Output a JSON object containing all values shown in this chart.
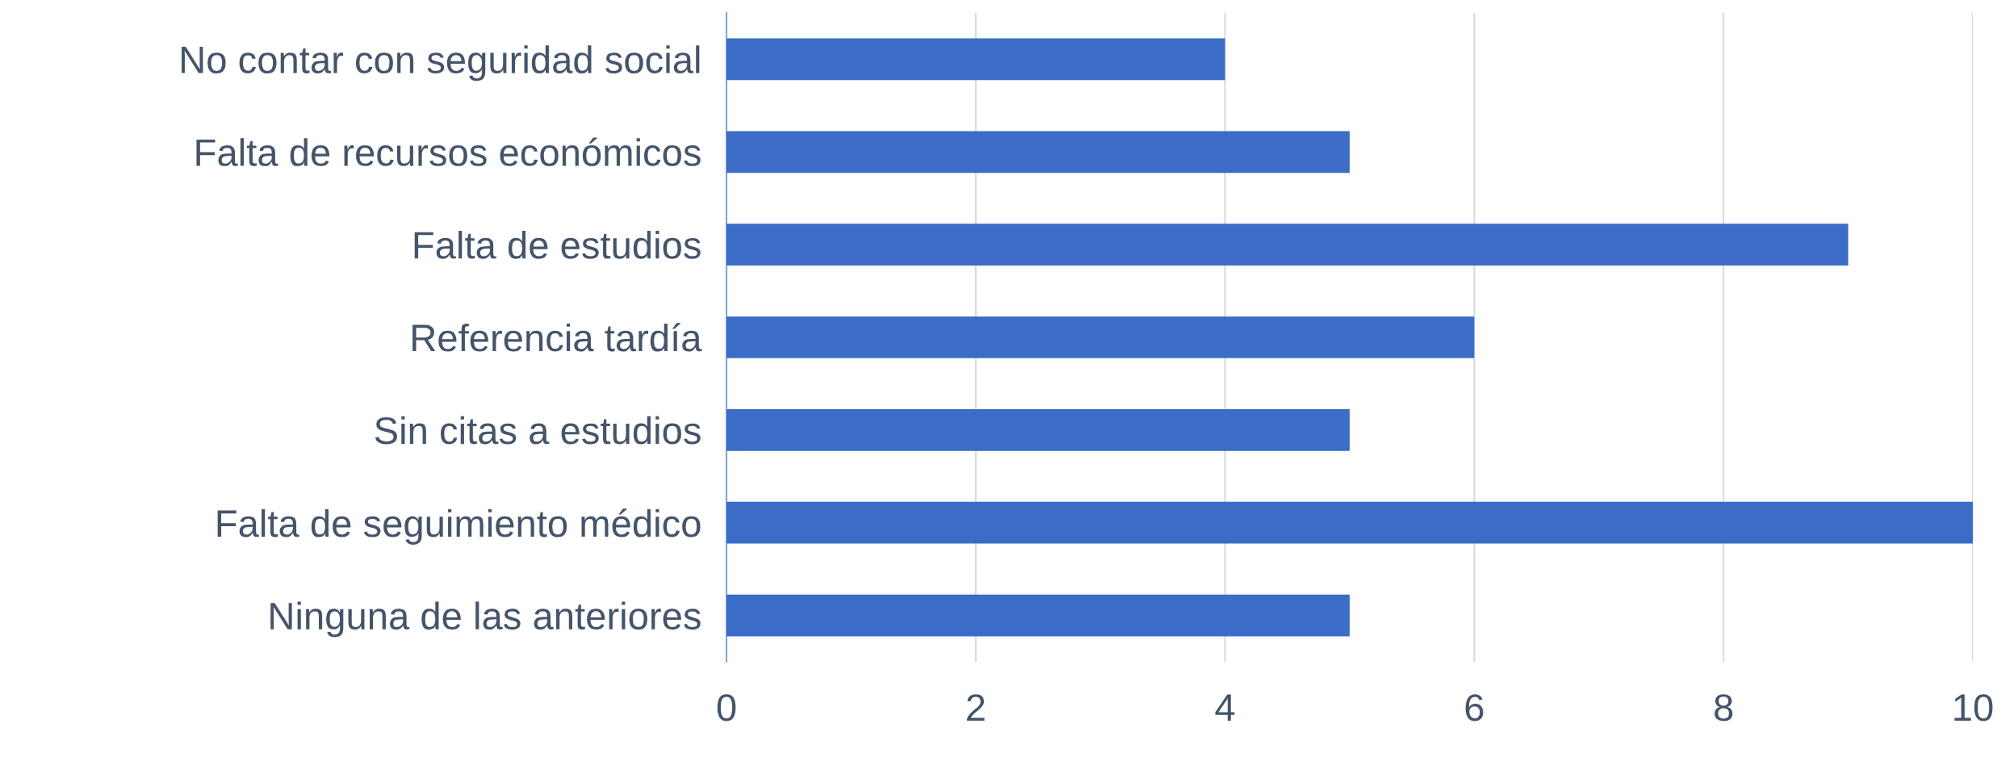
{
  "chart_data": {
    "type": "bar",
    "orientation": "horizontal",
    "categories": [
      "No contar con seguridad social",
      "Falta de recursos económicos",
      "Falta de estudios",
      "Referencia tardía",
      "Sin citas a estudios",
      "Falta de seguimiento médico",
      "Ninguna de las anteriores"
    ],
    "values": [
      4,
      5,
      9,
      6,
      5,
      10,
      5
    ],
    "color": "#3a6cc8",
    "xlim": [
      0,
      10
    ],
    "xticks": [
      0,
      2,
      4,
      6,
      8,
      10
    ],
    "grid": "x"
  }
}
